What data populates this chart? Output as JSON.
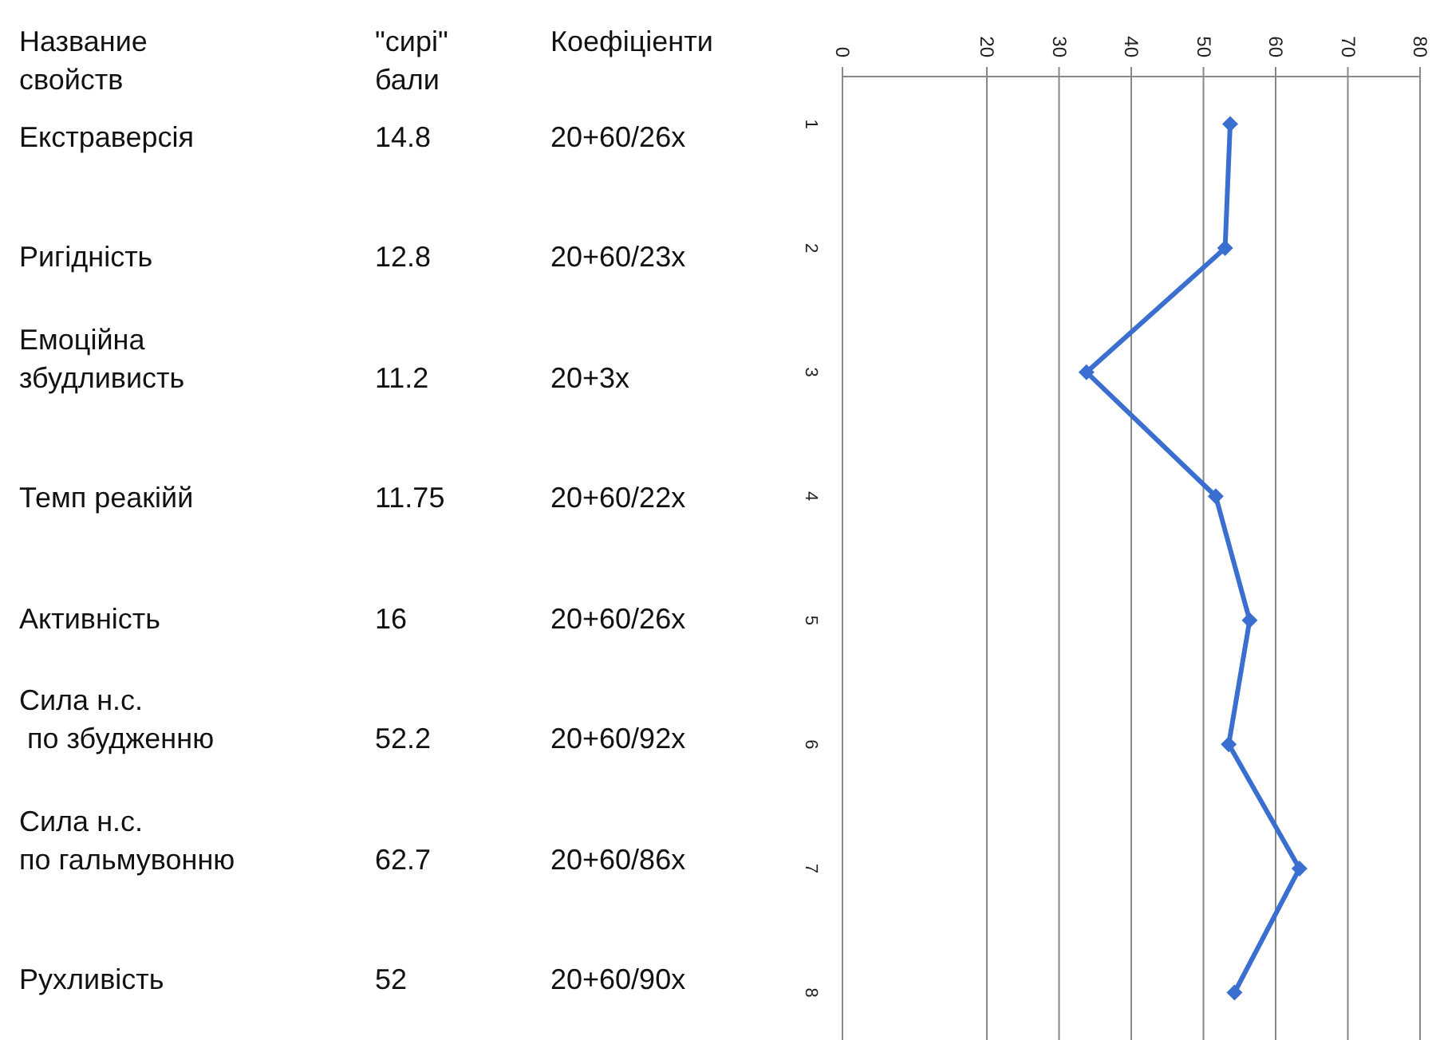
{
  "chart_data": {
    "type": "line",
    "orientation": "horizontal",
    "categories": [
      "1",
      "2",
      "3",
      "4",
      "5",
      "6",
      "7",
      "8"
    ],
    "series": [
      {
        "color": "#3a6fd0",
        "values": [
          53.7,
          53.0,
          33.8,
          51.7,
          56.4,
          53.5,
          63.3,
          54.3
        ]
      }
    ],
    "xlim": [
      0,
      80
    ],
    "xticks": [
      0,
      20,
      30,
      40,
      50,
      60,
      70,
      80
    ],
    "grid": "x",
    "marker": "diamond",
    "line_style": "solid",
    "annotations": [
      "Название\nсвойств",
      "\"сирі\"\nбали",
      "Коефіціенти",
      "Екстраверсія",
      "14.8",
      "20+60/26x",
      "Ригідність",
      "12.8",
      "20+60/23x",
      "Емоційна\nзбудливисть",
      "11.2",
      "20+3x",
      "Темп реакійй",
      "11.75",
      "20+60/22x",
      "Активність",
      "16",
      "20+60/26x",
      "Сила н.с.\n по збудженню",
      "52.2",
      "20+60/92x",
      "Сила н.с.\nпо гальмувонню",
      "62.7",
      "20+60/86x",
      "Рухливість",
      "52",
      "20+60/90x"
    ]
  }
}
